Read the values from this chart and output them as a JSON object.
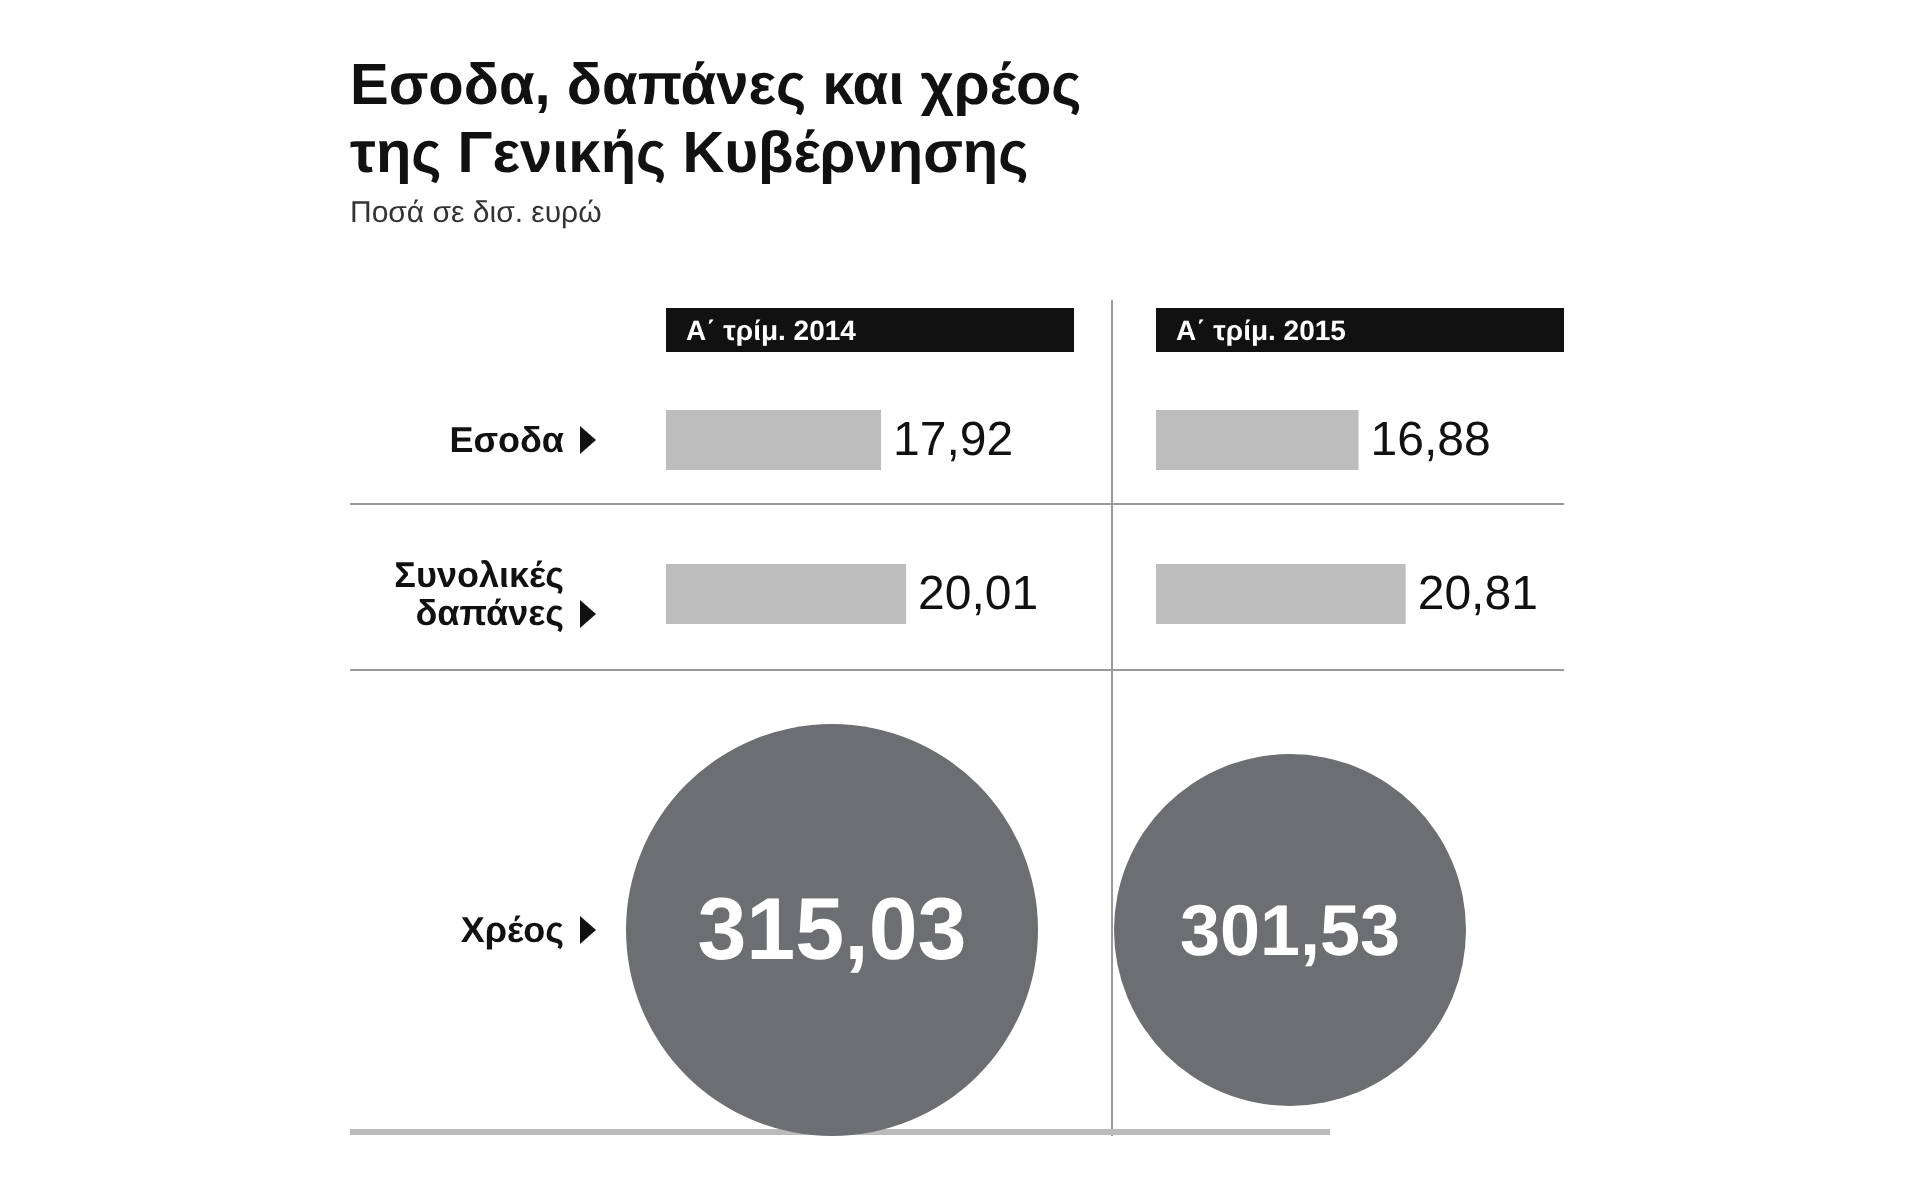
{
  "chart_data": [
    {
      "type": "other",
      "title": "Εσοδα, δαπάνες και χρέος\nτης Γενικής Κυβέρνησης",
      "subtitle": "Ποσά σε δισ. ευρώ"
    },
    {
      "type": "bar",
      "orientation": "horizontal",
      "title": "Α΄ τρίμ. 2014",
      "categories": [
        "Εσοδα",
        "Συνολικές δαπάνες"
      ],
      "color": "#bdbdbd",
      "values": [
        17.92,
        20.01
      ],
      "value_labels": [
        "17,92",
        "20,01"
      ]
    },
    {
      "type": "bar",
      "orientation": "horizontal",
      "title": "Α΄ τρίμ. 2015",
      "categories": [
        null,
        null
      ],
      "color": "#bdbdbd",
      "values": [
        16.88,
        20.81
      ],
      "value_labels": [
        "16,88",
        "20,81"
      ]
    },
    {
      "type": "other",
      "ylabel": "Χρέος",
      "categories": [
        null,
        null
      ],
      "color": "#6d6e71",
      "values": [
        315.03,
        301.53
      ],
      "value_labels": [
        "315,03",
        "301,53"
      ]
    }
  ]
}
